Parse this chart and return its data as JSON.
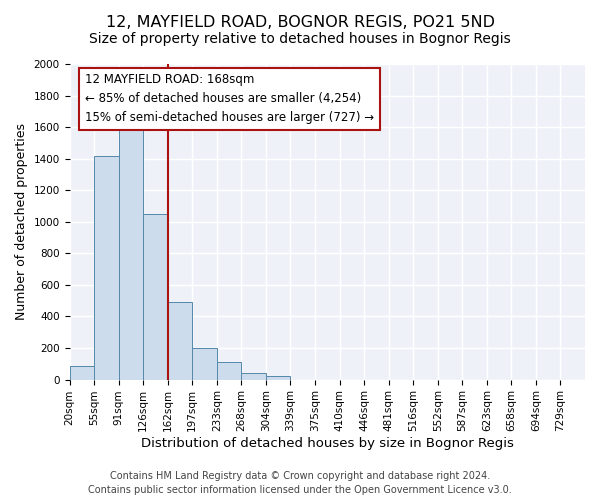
{
  "title": "12, MAYFIELD ROAD, BOGNOR REGIS, PO21 5ND",
  "subtitle": "Size of property relative to detached houses in Bognor Regis",
  "xlabel": "Distribution of detached houses by size in Bognor Regis",
  "ylabel": "Number of detached properties",
  "footer_line1": "Contains HM Land Registry data © Crown copyright and database right 2024.",
  "footer_line2": "Contains public sector information licensed under the Open Government Licence v3.0.",
  "bin_labels": [
    "20sqm",
    "55sqm",
    "91sqm",
    "126sqm",
    "162sqm",
    "197sqm",
    "233sqm",
    "268sqm",
    "304sqm",
    "339sqm",
    "375sqm",
    "410sqm",
    "446sqm",
    "481sqm",
    "516sqm",
    "552sqm",
    "587sqm",
    "623sqm",
    "658sqm",
    "694sqm",
    "729sqm"
  ],
  "bin_values": [
    85,
    1420,
    1610,
    1050,
    490,
    200,
    110,
    40,
    20,
    0,
    0,
    0,
    0,
    0,
    0,
    0,
    0,
    0,
    0,
    0,
    0
  ],
  "bar_color": "#ccdcec",
  "bar_edge_color": "#5588aa",
  "annotation_line_x_label": "162sqm",
  "annotation_line_color": "#aa1111",
  "annotation_line_idx": 4,
  "annotation_box_text_line1": "12 MAYFIELD ROAD: 168sqm",
  "annotation_box_text_line2": "← 85% of detached houses are smaller (4,254)",
  "annotation_box_text_line3": "15% of semi-detached houses are larger (727) →",
  "ylim": [
    0,
    2000
  ],
  "yticks": [
    0,
    200,
    400,
    600,
    800,
    1000,
    1200,
    1400,
    1600,
    1800,
    2000
  ],
  "title_fontsize": 11.5,
  "subtitle_fontsize": 10,
  "xlabel_fontsize": 9.5,
  "ylabel_fontsize": 9,
  "annotation_fontsize": 8.5,
  "tick_fontsize": 7.5,
  "footer_fontsize": 7
}
